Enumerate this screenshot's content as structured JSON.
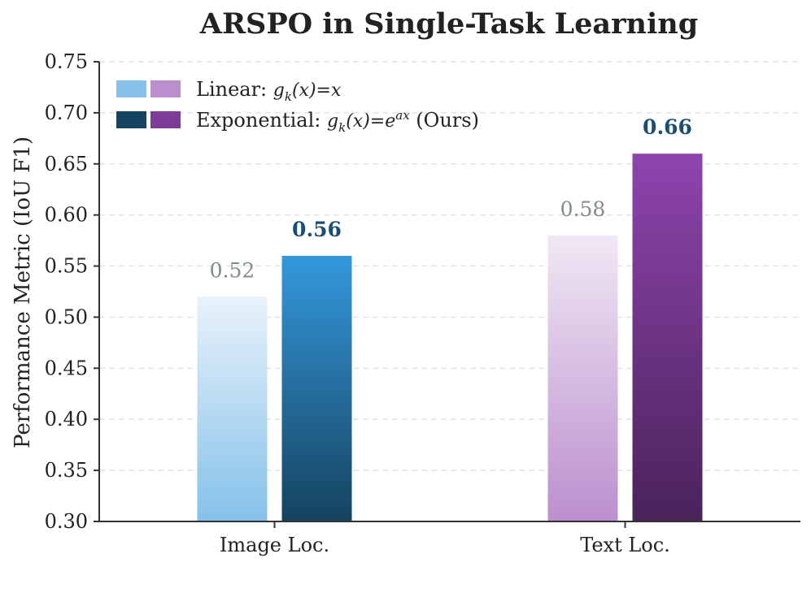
{
  "chart_data": {
    "type": "bar",
    "title": "ARSPO in Single-Task Learning",
    "ylabel": "Performance Metric (IoU F1)",
    "xlabel": "",
    "categories": [
      "Image Loc.",
      "Text Loc."
    ],
    "ylim": [
      0.3,
      0.75
    ],
    "yticks": [
      "0.30",
      "0.35",
      "0.40",
      "0.45",
      "0.50",
      "0.55",
      "0.60",
      "0.65",
      "0.70",
      "0.75"
    ],
    "grid": "horizontal dashed",
    "legend_position": "top-left",
    "series": [
      {
        "name": "Linear: g_k(x)=x",
        "values": [
          0.52,
          0.58
        ],
        "value_labels": [
          "0.52",
          "0.58"
        ],
        "colors_top": [
          "#e8f2fa",
          "#f0e8f4"
        ],
        "colors_bottom": [
          "#85c1e9",
          "#bb8fce"
        ]
      },
      {
        "name": "Exponential: g_k(x)=e^{ax} (Ours)",
        "values": [
          0.56,
          0.66
        ],
        "value_labels": [
          "0.56",
          "0.66"
        ],
        "colors_top": [
          "#3498db",
          "#8e44ad"
        ],
        "colors_bottom": [
          "#154360",
          "#4a235a"
        ]
      }
    ],
    "legend": [
      {
        "prefix": "Linear: ",
        "math_base": "g",
        "math_sub": "k",
        "math_mid": "(x)=",
        "math_end": "x",
        "math_sup": "",
        "suffix": "",
        "swatches": [
          "#85c1e9",
          "#bb8fce"
        ]
      },
      {
        "prefix": "Exponential: ",
        "math_base": "g",
        "math_sub": "k",
        "math_mid": "(x)=",
        "math_end": "e",
        "math_sup": "ax",
        "suffix": " (Ours)",
        "swatches": [
          "#154360",
          "#7d3c98"
        ]
      }
    ],
    "label_colors": {
      "linear": "#7f8c8d",
      "ours": "#1b4f72"
    },
    "axis_color": "#333333",
    "grid_color": "#e3e3e3"
  }
}
